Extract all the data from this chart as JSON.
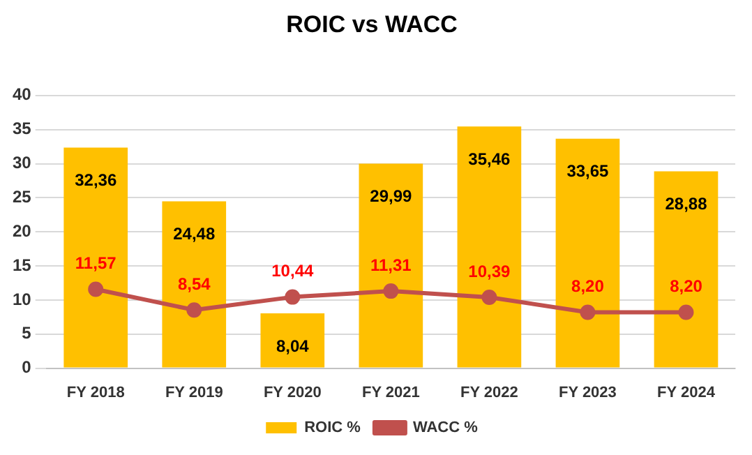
{
  "chart_data": {
    "type": "bar",
    "title": "ROIC vs WACC",
    "categories": [
      "FY 2018",
      "FY 2019",
      "FY 2020",
      "FY 2021",
      "FY 2022",
      "FY 2023",
      "FY 2024"
    ],
    "series": [
      {
        "name": "ROIC %",
        "color": "#ffc000",
        "values": [
          32.36,
          24.48,
          8.04,
          29.99,
          35.46,
          33.65,
          28.88
        ],
        "value_labels": [
          "32,36",
          "24,48",
          "8,04",
          "29,99",
          "35,46",
          "33,65",
          "28,88"
        ]
      },
      {
        "name": "WACC %",
        "type": "line",
        "color": "#c0504d",
        "marker": "circle",
        "values": [
          11.57,
          8.54,
          10.44,
          11.31,
          10.39,
          8.2,
          8.2
        ],
        "value_labels": [
          "11,57",
          "8,54",
          "10,44",
          "11,31",
          "10,39",
          "8,20",
          "8,20"
        ]
      }
    ],
    "ylim": [
      0,
      40
    ],
    "yticks": [
      0,
      5,
      10,
      15,
      20,
      25,
      30,
      35,
      40
    ],
    "grid": "y",
    "legend": "bottom"
  }
}
